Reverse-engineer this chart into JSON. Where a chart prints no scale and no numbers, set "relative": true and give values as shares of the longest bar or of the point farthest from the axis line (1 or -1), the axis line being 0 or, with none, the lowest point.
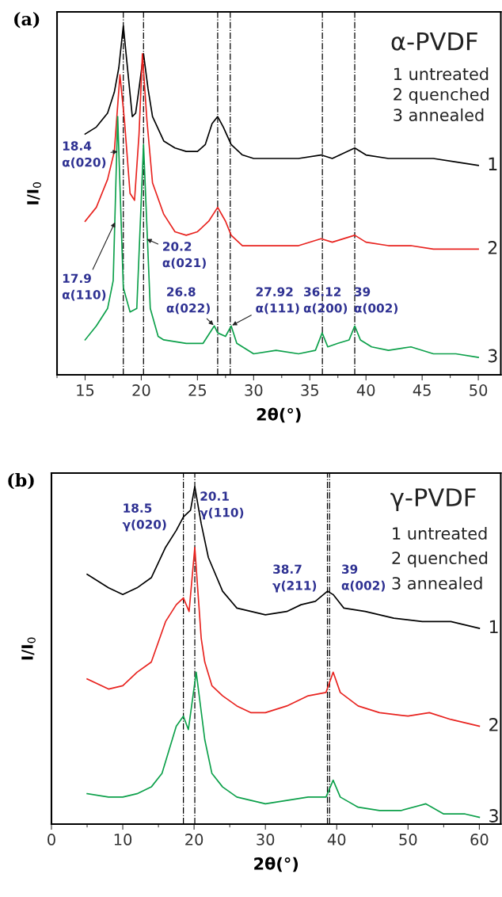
{
  "chart_data": [
    {
      "type": "line",
      "title": "(a)",
      "xlabel": "2θ(°)",
      "ylabel": "I/I$_{0}$",
      "relative": true,
      "xlim": [
        12.5,
        52
      ],
      "xticks": [
        15,
        20,
        25,
        30,
        35,
        40,
        45,
        50
      ],
      "legend": false,
      "grid": false,
      "series": [
        {
          "name": "1",
          "color": "#000000",
          "x": [
            15,
            16,
            17,
            17.6,
            18,
            18.4,
            18.8,
            19.2,
            19.5,
            19.8,
            20.2,
            20.6,
            21,
            22,
            23,
            24,
            25,
            25.7,
            26.3,
            26.8,
            27.3,
            28,
            29,
            30,
            32,
            34,
            36,
            37,
            39,
            40,
            42,
            44,
            46,
            48,
            50
          ],
          "values": [
            0.69,
            0.71,
            0.75,
            0.81,
            0.88,
            1.0,
            0.87,
            0.74,
            0.75,
            0.82,
            0.92,
            0.82,
            0.74,
            0.67,
            0.65,
            0.64,
            0.64,
            0.66,
            0.72,
            0.74,
            0.71,
            0.66,
            0.63,
            0.62,
            0.62,
            0.62,
            0.63,
            0.62,
            0.65,
            0.63,
            0.62,
            0.62,
            0.62,
            0.61,
            0.6
          ]
        },
        {
          "name": "2",
          "color": "#e8231f",
          "x": [
            15,
            16,
            17,
            17.6,
            18.1,
            18.5,
            19,
            19.4,
            19.8,
            20.1,
            20.5,
            21,
            22,
            23,
            24,
            25,
            26,
            26.8,
            27.5,
            28,
            29,
            30,
            32,
            34,
            36,
            37,
            39,
            40,
            42,
            44,
            46,
            48,
            50
          ],
          "values": [
            0.44,
            0.48,
            0.56,
            0.64,
            0.86,
            0.73,
            0.52,
            0.5,
            0.69,
            0.92,
            0.73,
            0.55,
            0.46,
            0.41,
            0.4,
            0.41,
            0.44,
            0.48,
            0.44,
            0.4,
            0.37,
            0.37,
            0.37,
            0.37,
            0.39,
            0.38,
            0.4,
            0.38,
            0.37,
            0.37,
            0.36,
            0.36,
            0.36
          ]
        },
        {
          "name": "3",
          "color": "#0ca04a",
          "x": [
            15,
            16,
            17,
            17.5,
            17.9,
            18.4,
            19,
            19.6,
            20.2,
            20.8,
            21.5,
            22,
            24,
            25.5,
            26.5,
            26.8,
            27.5,
            28,
            28.5,
            30,
            32,
            34,
            35.5,
            36.1,
            36.6,
            37.5,
            38.5,
            39,
            39.5,
            40.5,
            42,
            44,
            46,
            48,
            50
          ],
          "values": [
            0.1,
            0.14,
            0.19,
            0.27,
            0.74,
            0.25,
            0.18,
            0.19,
            0.66,
            0.19,
            0.11,
            0.1,
            0.09,
            0.09,
            0.14,
            0.12,
            0.11,
            0.14,
            0.09,
            0.06,
            0.07,
            0.06,
            0.07,
            0.12,
            0.08,
            0.09,
            0.1,
            0.14,
            0.1,
            0.08,
            0.07,
            0.08,
            0.06,
            0.06,
            0.05
          ]
        }
      ],
      "ref_lines": [
        {
          "axis": "x",
          "value": 18.4,
          "line_style": "dashdot",
          "color": "#000000"
        },
        {
          "axis": "x",
          "value": 20.2,
          "line_style": "dashdot",
          "color": "#000000"
        },
        {
          "axis": "x",
          "value": 26.8,
          "line_style": "dashdot",
          "color": "#000000"
        },
        {
          "axis": "x",
          "value": 27.92,
          "line_style": "dashdot",
          "color": "#000000"
        },
        {
          "axis": "x",
          "value": 36.12,
          "line_style": "dashdot",
          "color": "#000000"
        },
        {
          "axis": "x",
          "value": 39,
          "line_style": "dashdot",
          "color": "#000000"
        }
      ],
      "annotations": [
        {
          "text": "18.4\nα(020)",
          "x": 18.0,
          "y": 0.64
        },
        {
          "text": "20.2\nα(021)",
          "x": 20.4,
          "y": 0.39
        },
        {
          "text": "17.9\nα(110)",
          "x": 17.7,
          "y": 0.44
        },
        {
          "text": "26.8\nα(022)",
          "x": 26.5,
          "y": 0.14
        },
        {
          "text": "27.92\nα(111)",
          "x": 28,
          "y": 0.14
        },
        {
          "text": "36.12\nα(200)",
          "x": 36.12,
          "y": 0.12
        },
        {
          "text": "39\nα(002)",
          "x": 39,
          "y": 0.14
        },
        "α-PVDF",
        "1 untreated",
        "2 quenched",
        "3 annealed"
      ]
    },
    {
      "type": "line",
      "title": "(b)",
      "xlabel": "2θ(°)",
      "ylabel": "I/I$_{0}$",
      "relative": true,
      "xlim": [
        0,
        63
      ],
      "xticks": [
        0,
        10,
        20,
        30,
        40,
        50,
        60
      ],
      "legend": false,
      "grid": false,
      "series": [
        {
          "name": "1",
          "color": "#000000",
          "x": [
            5,
            8,
            10,
            12,
            14,
            16,
            17.5,
            18.5,
            19.5,
            20.1,
            21,
            22,
            24,
            26,
            28,
            30,
            33,
            35,
            37,
            38.7,
            39.5,
            41,
            44,
            48,
            52,
            56,
            60
          ],
          "values": [
            0.74,
            0.7,
            0.68,
            0.7,
            0.73,
            0.82,
            0.87,
            0.91,
            0.93,
            1.0,
            0.89,
            0.79,
            0.69,
            0.64,
            0.63,
            0.62,
            0.63,
            0.65,
            0.66,
            0.69,
            0.68,
            0.64,
            0.63,
            0.61,
            0.6,
            0.6,
            0.58
          ]
        },
        {
          "name": "2",
          "color": "#e8231f",
          "x": [
            5,
            8,
            10,
            12,
            14,
            16,
            17.5,
            18,
            18.5,
            19.3,
            20.1,
            21,
            21.5,
            22.5,
            24,
            26,
            28,
            30,
            33,
            36,
            38.5,
            39.5,
            40.5,
            43,
            46,
            50,
            53,
            56,
            60
          ],
          "values": [
            0.43,
            0.4,
            0.41,
            0.45,
            0.48,
            0.6,
            0.65,
            0.66,
            0.67,
            0.63,
            0.82,
            0.55,
            0.48,
            0.41,
            0.38,
            0.35,
            0.33,
            0.33,
            0.35,
            0.38,
            0.39,
            0.45,
            0.39,
            0.35,
            0.33,
            0.32,
            0.33,
            0.31,
            0.29
          ]
        },
        {
          "name": "3",
          "color": "#0ca04a",
          "x": [
            5,
            8,
            10,
            12,
            14,
            15.5,
            16.5,
            17.5,
            18.5,
            19.2,
            20.3,
            21.5,
            22.5,
            24,
            26,
            28,
            30,
            33,
            36,
            38.5,
            39.5,
            40.5,
            43,
            46,
            49,
            52.5,
            55,
            58,
            60
          ],
          "values": [
            0.09,
            0.08,
            0.08,
            0.09,
            0.11,
            0.15,
            0.22,
            0.29,
            0.32,
            0.28,
            0.45,
            0.25,
            0.15,
            0.11,
            0.08,
            0.07,
            0.06,
            0.07,
            0.08,
            0.08,
            0.13,
            0.08,
            0.05,
            0.04,
            0.04,
            0.06,
            0.03,
            0.03,
            0.02
          ]
        }
      ],
      "ref_lines": [
        {
          "axis": "x",
          "value": 18.5,
          "line_style": "dashdot",
          "color": "#000000"
        },
        {
          "axis": "x",
          "value": 20.1,
          "line_style": "dashdot",
          "color": "#000000"
        },
        {
          "axis": "x",
          "value": 38.7,
          "line_style": "dashdot",
          "color": "#000000"
        },
        {
          "axis": "x",
          "value": 39,
          "line_style": "dashdot",
          "color": "#000000"
        }
      ],
      "annotations": [
        {
          "text": "18.5\nγ(020)",
          "x": 18.5,
          "y": 0.91
        },
        {
          "text": "20.1\nγ(110)",
          "x": 20.1,
          "y": 1.0
        },
        {
          "text": "38.7\nγ(211)",
          "x": 38.7,
          "y": 0.69
        },
        {
          "text": "39\nα(002)",
          "x": 39,
          "y": 0.68
        },
        "γ-PVDF",
        "1 untreated",
        "2 quenched",
        "3 annealed"
      ]
    }
  ]
}
